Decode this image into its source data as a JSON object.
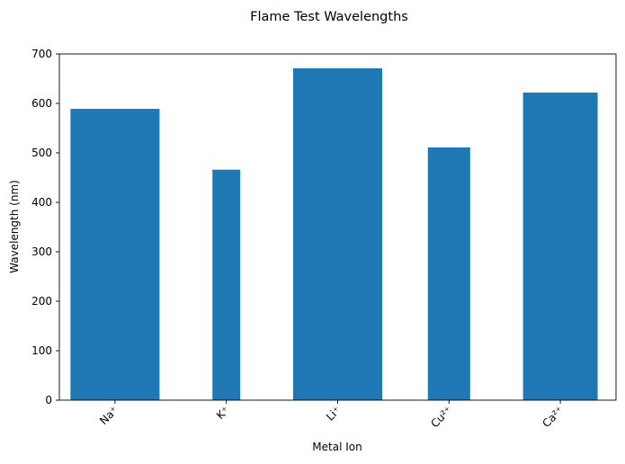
{
  "chart_data": {
    "type": "bar",
    "title": "Flame Test Wavelengths",
    "xlabel": "Metal Ion",
    "ylabel": "Wavelength (nm)",
    "categories": [
      "Na⁺",
      "K⁺",
      "Li⁺",
      "Cu²⁺",
      "Ca²⁺"
    ],
    "values": [
      589,
      466,
      671,
      511,
      622
    ],
    "bar_width_fraction": [
      0.8,
      0.25,
      0.8,
      0.38,
      0.67
    ],
    "ylim": [
      0,
      700
    ],
    "yticks": [
      0,
      100,
      200,
      300,
      400,
      500,
      600,
      700
    ],
    "bar_color": "#1f77b4",
    "grid": false,
    "xtick_rotation": 45
  }
}
